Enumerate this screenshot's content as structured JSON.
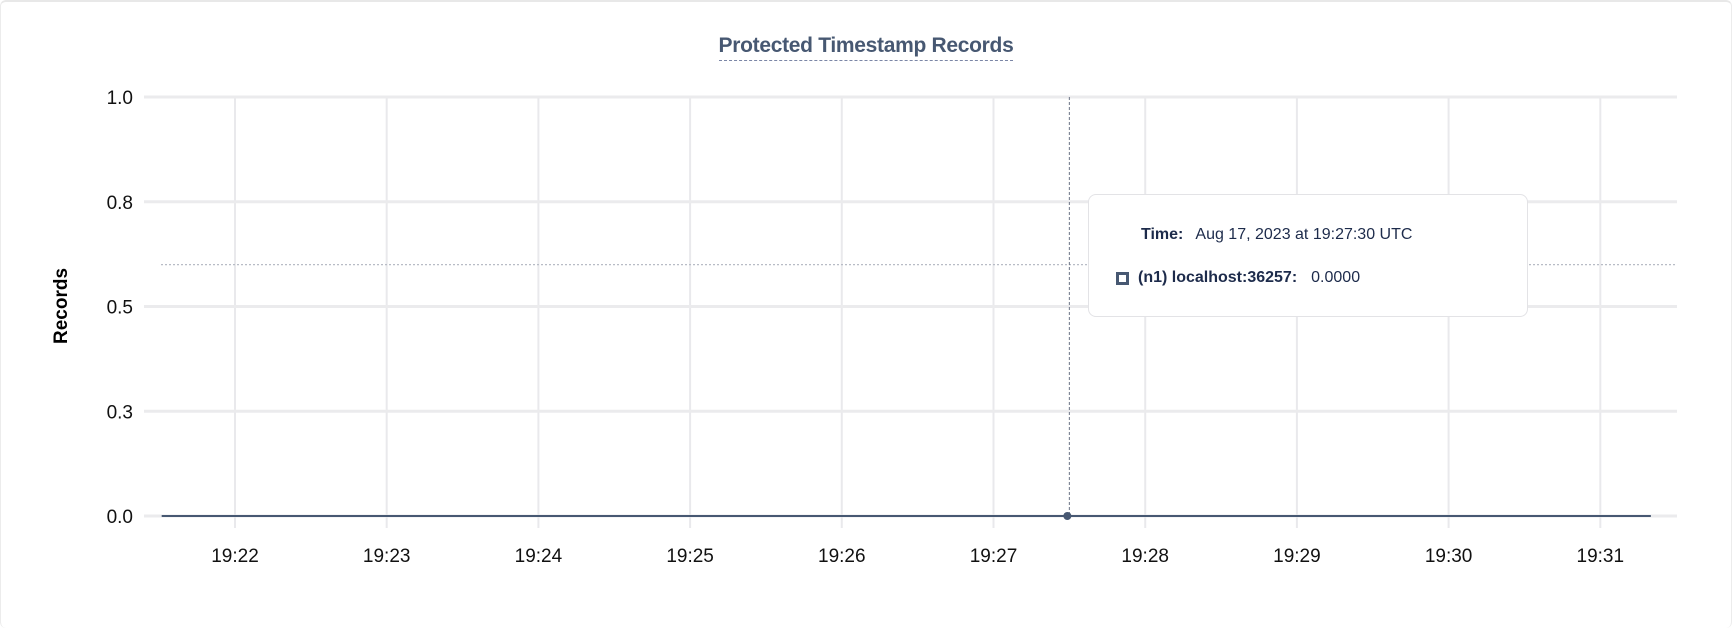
{
  "chart_data": {
    "type": "line",
    "title": "Protected Timestamp Records",
    "ylabel": "Records",
    "xlabel": "",
    "ylim": [
      0,
      1.0
    ],
    "y_ticks": [
      "0.0",
      "0.3",
      "0.5",
      "0.8",
      "1.0"
    ],
    "y_tick_values": [
      0,
      0.25,
      0.5,
      0.75,
      1.0
    ],
    "x_ticks": [
      "19:22",
      "19:23",
      "19:24",
      "19:25",
      "19:26",
      "19:27",
      "19:28",
      "19:29",
      "19:30",
      "19:31"
    ],
    "grid": true,
    "series": [
      {
        "name": "(n1) localhost:36257",
        "color": "#475872",
        "x": [
          "19:21:31",
          "19:31:20"
        ],
        "y": [
          0,
          0
        ]
      }
    ],
    "hover": {
      "time": "19:27:30",
      "value": 0,
      "reference_line_y": 0.6
    }
  },
  "tooltip": {
    "time_label": "Time:",
    "time_value": "Aug 17, 2023 at 19:27:30 UTC",
    "series_label": "(n1) localhost:36257:",
    "series_value": "0.0000"
  }
}
